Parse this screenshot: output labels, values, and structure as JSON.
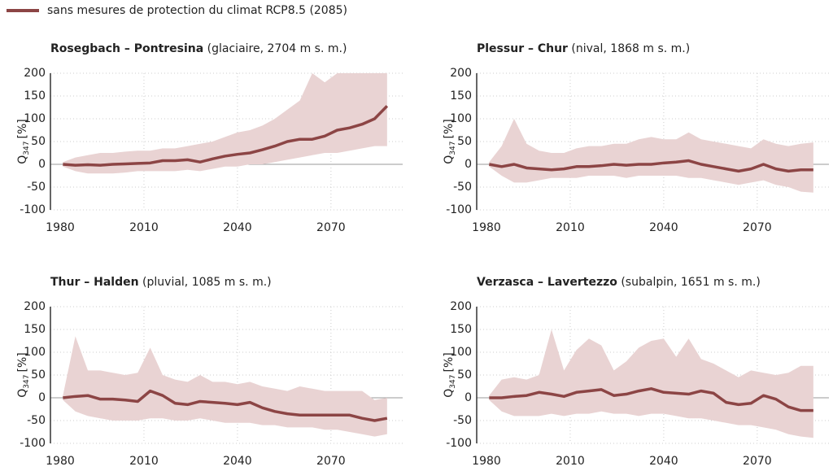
{
  "legend": {
    "name": "sans mesures de protection du climat RCP8.5 (2085)",
    "color": "#8c4545"
  },
  "chart_data": [
    {
      "type": "line",
      "title": "Rosegbach – Pontresina",
      "subtitle": "(glaciaire, 2704 m s. m.)",
      "ylabel": "Q",
      "ylabel_sub": "347",
      "ylabel_unit": "[%]",
      "x": [
        1984,
        1988,
        1992,
        1996,
        2000,
        2004,
        2008,
        2012,
        2016,
        2020,
        2024,
        2028,
        2032,
        2036,
        2040,
        2044,
        2048,
        2052,
        2056,
        2060,
        2064,
        2068,
        2072,
        2076,
        2080,
        2084,
        2088
      ],
      "xlim": [
        1980,
        2093
      ],
      "xticks": [
        1980,
        2010,
        2040,
        2070
      ],
      "ylim": [
        -100,
        200
      ],
      "yticks": [
        -100,
        -50,
        0,
        50,
        100,
        150,
        200
      ],
      "grid": true,
      "series": [
        {
          "color": "#8c4545",
          "band_color": "#e9d3d3",
          "values": [
            0,
            -2,
            -1,
            -2,
            0,
            1,
            2,
            3,
            8,
            8,
            10,
            5,
            12,
            18,
            22,
            25,
            32,
            40,
            50,
            55,
            55,
            62,
            75,
            80,
            88,
            100,
            128
          ],
          "upper": [
            5,
            15,
            20,
            25,
            25,
            28,
            30,
            30,
            35,
            35,
            40,
            45,
            50,
            60,
            70,
            75,
            85,
            100,
            120,
            140,
            200,
            180,
            200,
            200,
            200,
            200,
            200
          ],
          "lower": [
            -5,
            -15,
            -20,
            -20,
            -20,
            -18,
            -15,
            -15,
            -15,
            -15,
            -12,
            -15,
            -10,
            -5,
            -5,
            0,
            0,
            5,
            10,
            15,
            20,
            25,
            25,
            30,
            35,
            40,
            40
          ]
        }
      ]
    },
    {
      "type": "line",
      "title": "Plessur – Chur",
      "subtitle": "(nival, 1868 m s. m.)",
      "ylabel": "Q",
      "ylabel_sub": "347",
      "ylabel_unit": "[%]",
      "x": [
        1984,
        1988,
        1992,
        1996,
        2000,
        2004,
        2008,
        2012,
        2016,
        2020,
        2024,
        2028,
        2032,
        2036,
        2040,
        2044,
        2048,
        2052,
        2056,
        2060,
        2064,
        2068,
        2072,
        2076,
        2080,
        2084,
        2088
      ],
      "xlim": [
        1980,
        2093
      ],
      "xticks": [
        1980,
        2010,
        2040,
        2070
      ],
      "ylim": [
        -100,
        200
      ],
      "yticks": [
        -100,
        -50,
        0,
        50,
        100,
        150,
        200
      ],
      "grid": true,
      "series": [
        {
          "color": "#8c4545",
          "band_color": "#e9d3d3",
          "values": [
            0,
            -5,
            0,
            -8,
            -10,
            -12,
            -10,
            -5,
            -5,
            -3,
            0,
            -2,
            0,
            0,
            3,
            5,
            8,
            0,
            -5,
            -10,
            -15,
            -10,
            0,
            -10,
            -15,
            -12,
            -12
          ],
          "upper": [
            5,
            40,
            100,
            45,
            30,
            25,
            25,
            35,
            40,
            40,
            45,
            45,
            55,
            60,
            55,
            55,
            70,
            55,
            50,
            45,
            40,
            35,
            55,
            45,
            40,
            45,
            48
          ],
          "lower": [
            -5,
            -25,
            -40,
            -40,
            -35,
            -30,
            -30,
            -30,
            -25,
            -25,
            -25,
            -30,
            -25,
            -25,
            -25,
            -25,
            -30,
            -30,
            -35,
            -40,
            -45,
            -40,
            -35,
            -45,
            -50,
            -60,
            -62
          ]
        }
      ]
    },
    {
      "type": "line",
      "title": "Thur – Halden",
      "subtitle": "(pluvial, 1085 m s. m.)",
      "ylabel": "Q",
      "ylabel_sub": "347",
      "ylabel_unit": "[%]",
      "x": [
        1984,
        1988,
        1992,
        1996,
        2000,
        2004,
        2008,
        2012,
        2016,
        2020,
        2024,
        2028,
        2032,
        2036,
        2040,
        2044,
        2048,
        2052,
        2056,
        2060,
        2064,
        2068,
        2072,
        2076,
        2080,
        2084,
        2088
      ],
      "xlim": [
        1980,
        2093
      ],
      "xticks": [
        1980,
        2010,
        2040,
        2070
      ],
      "ylim": [
        -100,
        200
      ],
      "yticks": [
        -100,
        -50,
        0,
        50,
        100,
        150,
        200
      ],
      "grid": true,
      "series": [
        {
          "color": "#8c4545",
          "band_color": "#e9d3d3",
          "values": [
            0,
            3,
            5,
            -3,
            -3,
            -5,
            -8,
            15,
            5,
            -12,
            -15,
            -8,
            -10,
            -12,
            -15,
            -10,
            -22,
            -30,
            -35,
            -38,
            -38,
            -38,
            -38,
            -38,
            -45,
            -50,
            -45
          ],
          "upper": [
            5,
            135,
            60,
            60,
            55,
            50,
            55,
            110,
            50,
            40,
            35,
            50,
            35,
            35,
            30,
            35,
            25,
            20,
            15,
            25,
            20,
            15,
            15,
            15,
            15,
            -5,
            0
          ],
          "lower": [
            -5,
            -30,
            -40,
            -45,
            -50,
            -50,
            -50,
            -45,
            -45,
            -50,
            -50,
            -45,
            -50,
            -55,
            -55,
            -55,
            -60,
            -60,
            -65,
            -65,
            -65,
            -70,
            -70,
            -75,
            -80,
            -85,
            -80
          ]
        }
      ]
    },
    {
      "type": "line",
      "title": "Verzasca – Lavertezzo",
      "subtitle": "(subalpin, 1651 m s. m.)",
      "ylabel": "Q",
      "ylabel_sub": "347",
      "ylabel_unit": "[%]",
      "x": [
        1984,
        1988,
        1992,
        1996,
        2000,
        2004,
        2008,
        2012,
        2016,
        2020,
        2024,
        2028,
        2032,
        2036,
        2040,
        2044,
        2048,
        2052,
        2056,
        2060,
        2064,
        2068,
        2072,
        2076,
        2080,
        2084,
        2088
      ],
      "xlim": [
        1980,
        2093
      ],
      "xticks": [
        1980,
        2010,
        2040,
        2070
      ],
      "ylim": [
        -100,
        200
      ],
      "yticks": [
        -100,
        -50,
        0,
        50,
        100,
        150,
        200
      ],
      "grid": true,
      "series": [
        {
          "color": "#8c4545",
          "band_color": "#e9d3d3",
          "values": [
            0,
            0,
            3,
            5,
            12,
            8,
            3,
            12,
            15,
            18,
            5,
            8,
            15,
            20,
            12,
            10,
            8,
            15,
            10,
            -10,
            -15,
            -12,
            5,
            -3,
            -20,
            -28,
            -28
          ],
          "upper": [
            5,
            40,
            45,
            40,
            50,
            150,
            60,
            105,
            130,
            115,
            60,
            80,
            110,
            125,
            130,
            90,
            130,
            85,
            75,
            60,
            45,
            60,
            55,
            50,
            55,
            70,
            70
          ],
          "lower": [
            -5,
            -30,
            -40,
            -40,
            -40,
            -35,
            -40,
            -35,
            -35,
            -30,
            -35,
            -35,
            -40,
            -35,
            -35,
            -40,
            -45,
            -45,
            -50,
            -55,
            -60,
            -60,
            -65,
            -70,
            -80,
            -85,
            -88
          ]
        }
      ]
    }
  ]
}
